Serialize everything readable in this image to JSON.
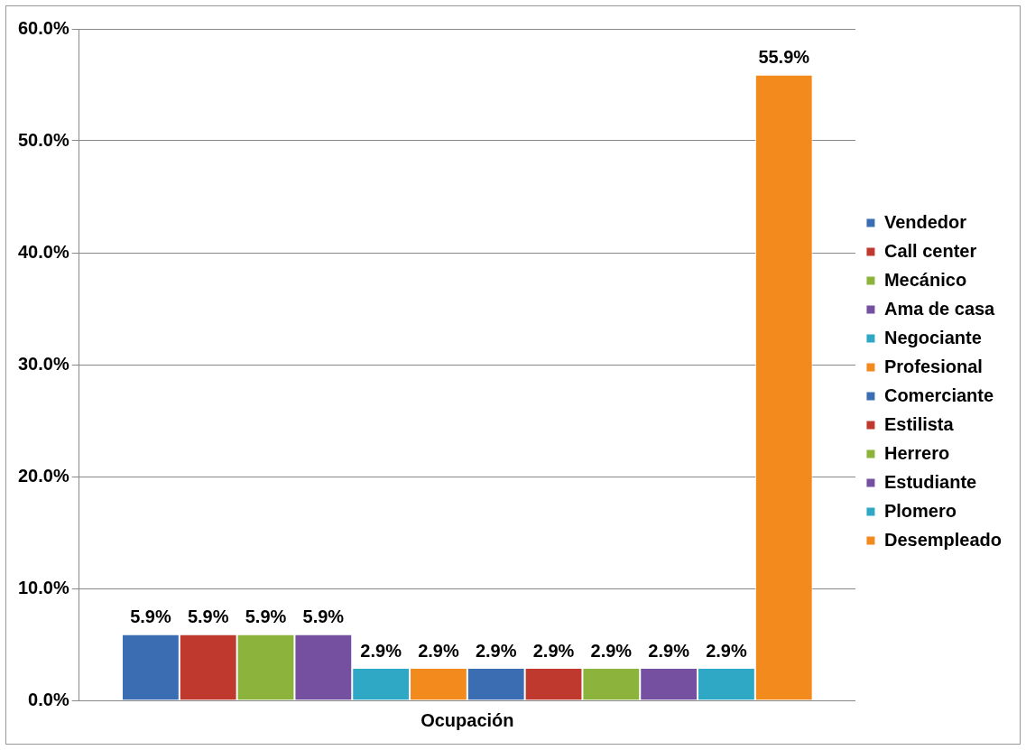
{
  "chart_data": {
    "type": "bar",
    "xlabel": null,
    "categories": [
      "Ocupación"
    ],
    "series": [
      {
        "name": "Vendedor",
        "color": "#3b6db3",
        "values": [
          5.9
        ],
        "value_labels": [
          "5.9%"
        ]
      },
      {
        "name": "Call center",
        "color": "#c0392f",
        "values": [
          5.9
        ],
        "value_labels": [
          "5.9%"
        ]
      },
      {
        "name": "Mecánico",
        "color": "#8cb43c",
        "values": [
          5.9
        ],
        "value_labels": [
          "5.9%"
        ]
      },
      {
        "name": "Ama de casa",
        "color": "#7550a0",
        "values": [
          5.9
        ],
        "value_labels": [
          "5.9%"
        ]
      },
      {
        "name": "Negociante",
        "color": "#2fa8c6",
        "values": [
          2.9
        ],
        "value_labels": [
          "2.9%"
        ]
      },
      {
        "name": "Profesional",
        "color": "#f28a1e",
        "values": [
          2.9
        ],
        "value_labels": [
          "2.9%"
        ]
      },
      {
        "name": "Comerciante",
        "color": "#3b6db3",
        "values": [
          2.9
        ],
        "value_labels": [
          "2.9%"
        ]
      },
      {
        "name": "Estilista",
        "color": "#c0392f",
        "values": [
          2.9
        ],
        "value_labels": [
          "2.9%"
        ]
      },
      {
        "name": "Herrero",
        "color": "#8cb43c",
        "values": [
          2.9
        ],
        "value_labels": [
          "2.9%"
        ]
      },
      {
        "name": "Estudiante",
        "color": "#7550a0",
        "values": [
          2.9
        ],
        "value_labels": [
          "2.9%"
        ]
      },
      {
        "name": "Plomero",
        "color": "#2fa8c6",
        "values": [
          2.9
        ],
        "value_labels": [
          "2.9%"
        ]
      },
      {
        "name": "Desempleado",
        "color": "#f28a1e",
        "values": [
          55.9
        ],
        "value_labels": [
          "55.9%"
        ]
      }
    ],
    "ylim": [
      0,
      60
    ],
    "yticks": [
      {
        "value": 0,
        "label": "0.0%"
      },
      {
        "value": 10,
        "label": "10.0%"
      },
      {
        "value": 20,
        "label": "20.0%"
      },
      {
        "value": 30,
        "label": "30.0%"
      },
      {
        "value": 40,
        "label": "40.0%"
      },
      {
        "value": 50,
        "label": "50.0%"
      },
      {
        "value": 60,
        "label": "60.0%"
      }
    ],
    "grid": "y",
    "legend": "right"
  }
}
